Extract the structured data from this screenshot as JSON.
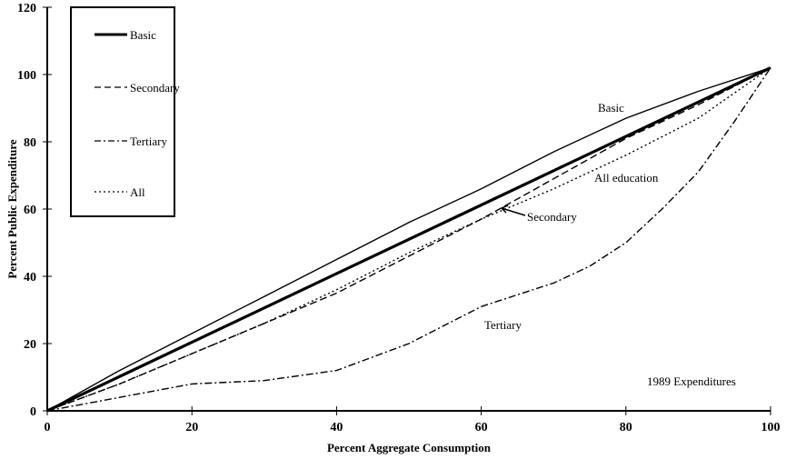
{
  "chart_data": {
    "type": "line",
    "title": "",
    "xlabel": "Percent Aggregate Consumption",
    "ylabel": "Percent Public Expenditure",
    "xlim": [
      0,
      100
    ],
    "ylim": [
      0,
      120
    ],
    "xticks": [
      0,
      20,
      40,
      60,
      80,
      100
    ],
    "yticks": [
      0,
      20,
      40,
      60,
      80,
      100,
      120
    ],
    "grid": false,
    "legend_position": "top-left",
    "legend": [
      "Basic",
      "Secondary",
      "Tertiary",
      "All"
    ],
    "reference_line": {
      "x": [
        0,
        100
      ],
      "y": [
        0,
        102
      ]
    },
    "series": [
      {
        "name": "Basic",
        "style": "solid",
        "x": [
          0,
          10,
          20,
          30,
          40,
          50,
          60,
          70,
          80,
          90,
          100
        ],
        "y": [
          0,
          12,
          23,
          34,
          45,
          56,
          66,
          77,
          87,
          95,
          102
        ]
      },
      {
        "name": "Secondary",
        "style": "dashed",
        "x": [
          0,
          10,
          20,
          30,
          40,
          50,
          60,
          70,
          80,
          90,
          100
        ],
        "y": [
          0,
          8,
          17,
          26,
          35,
          46,
          57,
          69,
          81,
          91,
          102
        ]
      },
      {
        "name": "Tertiary",
        "style": "dashdot",
        "x": [
          0,
          10,
          20,
          30,
          40,
          50,
          60,
          70,
          75,
          80,
          85,
          90,
          95,
          100
        ],
        "y": [
          0,
          4,
          8,
          9,
          12,
          20,
          31,
          38,
          43,
          50,
          60,
          71,
          86,
          102
        ]
      },
      {
        "name": "All",
        "style": "dotted",
        "x": [
          0,
          10,
          20,
          30,
          40,
          50,
          60,
          70,
          80,
          90,
          100
        ],
        "y": [
          0,
          8,
          17,
          26,
          36,
          47,
          57,
          66,
          76,
          87,
          102
        ]
      }
    ],
    "annotations": [
      "Basic",
      "All education",
      "Secondary",
      "Tertiary",
      "1989 Expenditures"
    ]
  }
}
